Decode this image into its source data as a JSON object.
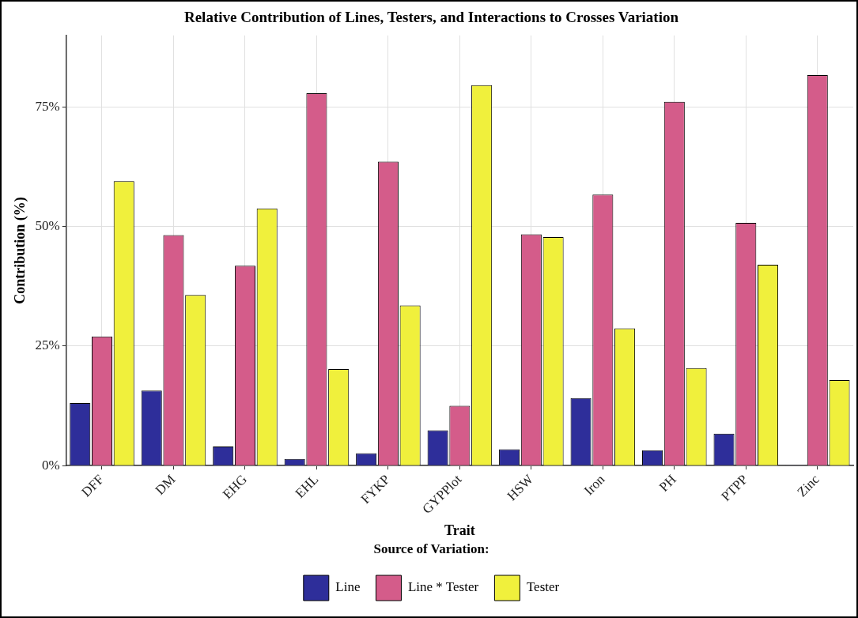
{
  "chart_data": {
    "type": "bar",
    "title": "Relative Contribution of Lines, Testers, and Interactions to Crosses Variation",
    "xlabel": "Trait",
    "ylabel": "Contribution (%)",
    "legend_title": "Source of Variation:",
    "categories": [
      "DFF",
      "DM",
      "EHG",
      "EHL",
      "FYKP",
      "GYPPlot",
      "HSW",
      "Iron",
      "PH",
      "PTPP",
      "Zinc"
    ],
    "series": [
      {
        "name": "Line",
        "color": "#2e2e9a",
        "values": [
          13.1,
          15.7,
          4.0,
          1.4,
          2.6,
          7.4,
          3.4,
          14.1,
          3.2,
          6.7,
          0.1
        ]
      },
      {
        "name": "Line * Tester",
        "color": "#d45c8a",
        "values": [
          27,
          48.2,
          41.8,
          77.9,
          63.6,
          12.5,
          48.4,
          56.7,
          76.1,
          50.8,
          81.7
        ]
      },
      {
        "name": "Tester",
        "color": "#f0f03c",
        "values": [
          59.5,
          35.7,
          53.8,
          20.2,
          33.5,
          79.6,
          47.8,
          28.7,
          20.4,
          42.0,
          17.9
        ]
      }
    ],
    "ylim": [
      0,
      90
    ],
    "yticks": [
      {
        "value": 0,
        "label": "0%"
      },
      {
        "value": 25,
        "label": "25%"
      },
      {
        "value": 50,
        "label": "50%"
      },
      {
        "value": 75,
        "label": "75%"
      }
    ],
    "grid": true,
    "legend": "bottom"
  }
}
